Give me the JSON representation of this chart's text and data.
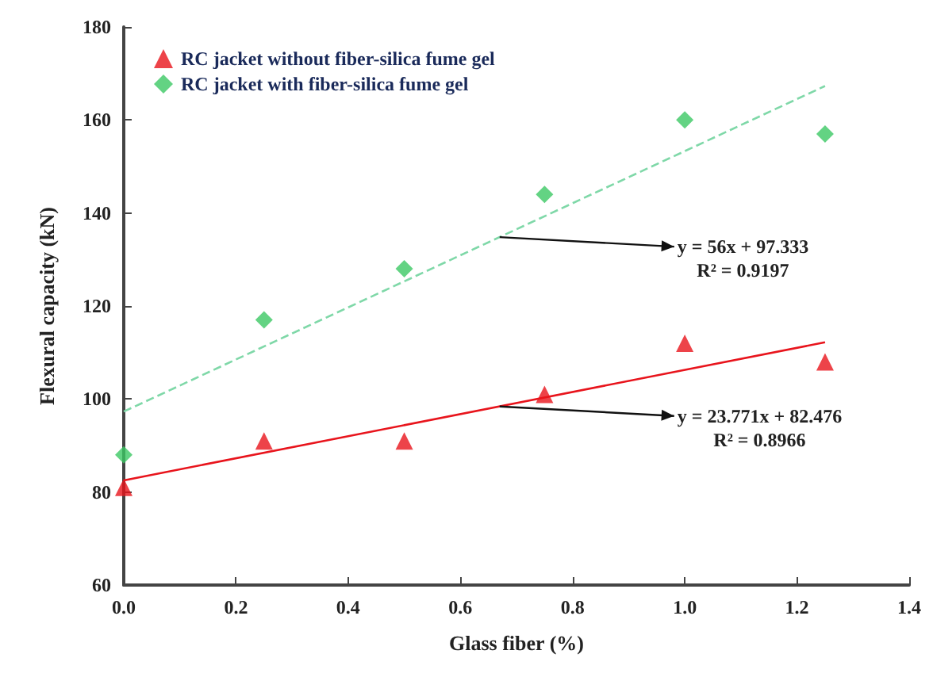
{
  "chart_data": {
    "type": "scatter",
    "xlabel": "Glass fiber (%)",
    "ylabel": "Flexural capacity (kN)",
    "xlim": [
      0,
      1.4
    ],
    "xticks": [
      {
        "value": 0,
        "label": "0.0"
      },
      0.2,
      0.4,
      0.6,
      0.8,
      {
        "value": 1,
        "label": "1.0"
      },
      1.2,
      1.4
    ],
    "ylim": [
      60,
      180
    ],
    "yticks": [
      60,
      80,
      100,
      120,
      140,
      160,
      180
    ],
    "grid": false,
    "legend": "top left",
    "series": [
      {
        "name": "RC jacket without fiber-silica fume gel",
        "color": "#e8141c",
        "marker": "triangle",
        "x": [
          0,
          0.25,
          0.5,
          0.75,
          1,
          1.25
        ],
        "values": [
          81,
          91,
          91,
          101,
          112,
          108
        ]
      },
      {
        "name": "RC jacket with fiber-silica fume gel",
        "color": "#3cc864",
        "marker": "diamond",
        "x": [
          0,
          0.25,
          0.5,
          0.75,
          1,
          1.25
        ],
        "values": [
          88,
          117,
          128,
          144,
          160,
          157
        ]
      },
      {
        "type": "line",
        "color": "#e8141c",
        "line_style": "solid",
        "marker": "none",
        "x": [
          0,
          1.25
        ],
        "values": [
          82.5,
          112.2
        ]
      },
      {
        "type": "line",
        "color": "#7fd8a8",
        "line_style": "dashed",
        "marker": "none",
        "x": [
          0,
          1.25
        ],
        "values": [
          97.3,
          167.3
        ]
      }
    ],
    "annotations": [
      {
        "text": "y = 56x + 97.333\nR² = 0.9197",
        "x": 0.67,
        "y": 134.8
      },
      {
        "text": "y = 23.771x + 82.476\nR² = 0.8966",
        "x": 0.67,
        "y": 98.4
      }
    ]
  }
}
